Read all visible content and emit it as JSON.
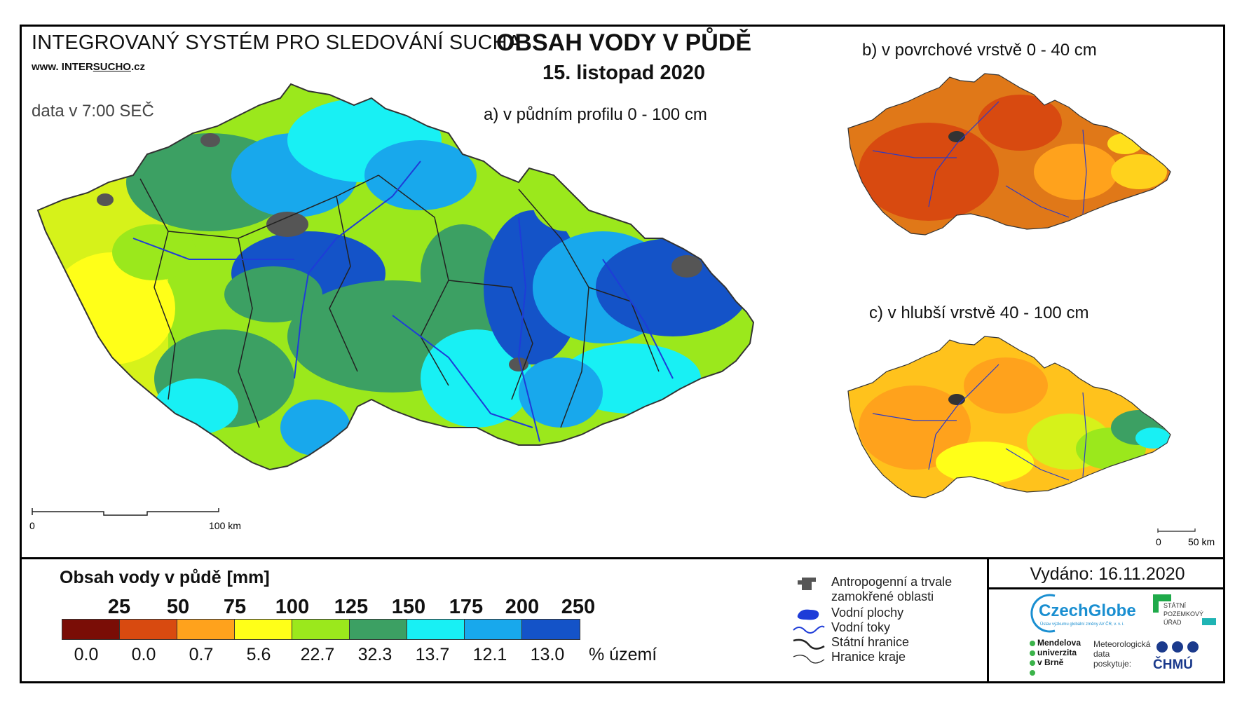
{
  "header": {
    "system_title": "INTEGROVANÝ SYSTÉM PRO SLEDOVÁNÍ SUCHA",
    "url_prefix": "www. INTER",
    "url_brand": "SUCHO",
    "url_suffix": ".cz",
    "data_time": "data v 7:00 SEČ",
    "title": "OBSAH VODY V PŮDĚ",
    "date": "15. listopad 2020"
  },
  "maps": {
    "main_label": "a) v půdním profilu 0 - 100 cm",
    "surface_label": "b) v povrchové vrstvě 0 - 40 cm",
    "deep_label": "c) v hlubší vrstvě 40 - 100 cm",
    "main_scale": {
      "start": "0",
      "end": "100 km"
    },
    "small_scale": {
      "start": "0",
      "end": "50 km"
    }
  },
  "legend": {
    "title": "Obsah vody v půdě",
    "unit": "[mm]",
    "class_breaks": [
      "25",
      "50",
      "75",
      "100",
      "125",
      "150",
      "175",
      "200",
      "250"
    ],
    "classes": [
      {
        "color": "#7a0d06",
        "percent": "0.0"
      },
      {
        "color": "#d84a10",
        "percent": "0.0"
      },
      {
        "color": "#ffa21c",
        "percent": "0.7"
      },
      {
        "color": "#ffff18",
        "percent": "5.6"
      },
      {
        "color": "#9be81c",
        "percent": "22.7"
      },
      {
        "color": "#3ca063",
        "percent": "32.3"
      },
      {
        "color": "#18f0f4",
        "percent": "13.7"
      },
      {
        "color": "#18a8ec",
        "percent": "12.1"
      },
      {
        "color": "#1453c8",
        "percent": "13.0"
      }
    ],
    "percent_label": "% území",
    "symbols": [
      {
        "icon": "anthropogenic-area-icon",
        "text": "Antropogenní a trvale zamokřené oblasti"
      },
      {
        "icon": "water-body-icon",
        "text": "Vodní plochy"
      },
      {
        "icon": "river-icon",
        "text": "Vodní toky"
      },
      {
        "icon": "state-border-icon",
        "text": "Státní hranice"
      },
      {
        "icon": "region-border-icon",
        "text": "Hranice kraje"
      }
    ]
  },
  "footer": {
    "issued": "Vydáno: 16.11.2020",
    "czechglobe": "CzechGlobe",
    "czechglobe_sub": "Ústav výzkumu globální změny AV ČR, v. v. i.",
    "spu": [
      "STÁTNÍ",
      "POZEMKOVÝ",
      "ÚŘAD"
    ],
    "mendel": [
      "Mendelova",
      "univerzita",
      "v Brně"
    ],
    "met_lines": [
      "Meteorologická",
      "data",
      "poskytuje:"
    ],
    "chmu": "ČHMÚ"
  },
  "colors": {
    "river": "#1e3cd8",
    "border": "#222222",
    "anthropogenic": "#555555"
  }
}
